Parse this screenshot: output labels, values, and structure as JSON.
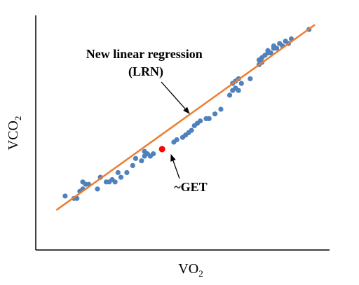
{
  "chart_data": {
    "type": "scatter",
    "title": "",
    "xlabel": {
      "main": "VO",
      "sub": "2"
    },
    "ylabel": {
      "main": "VCO",
      "sub": "2"
    },
    "xlim": [
      0,
      100
    ],
    "ylim": [
      0,
      100
    ],
    "grid": false,
    "tick_labels": false,
    "colors": {
      "points": "#4f81bd",
      "line": "#ed7d31",
      "highlight": "#ff0000",
      "axes": "#000000"
    },
    "series": [
      {
        "type": "scatter",
        "points": [
          [
            10,
            23
          ],
          [
            13,
            22
          ],
          [
            14,
            22
          ],
          [
            15,
            25
          ],
          [
            16,
            26
          ],
          [
            16,
            29
          ],
          [
            17,
            28
          ],
          [
            18,
            28
          ],
          [
            21,
            26
          ],
          [
            22,
            31
          ],
          [
            24,
            29
          ],
          [
            25,
            29
          ],
          [
            26,
            30
          ],
          [
            27,
            29
          ],
          [
            28,
            33
          ],
          [
            29,
            31
          ],
          [
            31,
            33
          ],
          [
            33,
            36
          ],
          [
            34,
            39
          ],
          [
            36,
            38
          ],
          [
            37,
            40
          ],
          [
            37,
            42
          ],
          [
            38,
            41
          ],
          [
            39,
            40
          ],
          [
            40,
            41
          ],
          [
            47,
            46
          ],
          [
            48,
            47
          ],
          [
            50,
            48
          ],
          [
            51,
            49
          ],
          [
            52,
            50
          ],
          [
            53,
            51
          ],
          [
            54,
            53
          ],
          [
            55,
            54
          ],
          [
            56,
            55
          ],
          [
            58,
            56
          ],
          [
            59,
            56
          ],
          [
            61,
            58
          ],
          [
            63,
            60
          ],
          [
            66,
            66
          ],
          [
            67,
            68
          ],
          [
            67,
            71
          ],
          [
            68,
            72
          ],
          [
            68,
            69
          ],
          [
            69,
            68
          ],
          [
            69,
            73
          ],
          [
            70,
            71
          ],
          [
            73,
            73
          ],
          [
            76,
            79
          ],
          [
            76,
            81
          ],
          [
            77,
            82
          ],
          [
            77,
            80
          ],
          [
            78,
            83
          ],
          [
            79,
            84
          ],
          [
            79,
            85
          ],
          [
            80,
            84
          ],
          [
            81,
            87
          ],
          [
            81,
            86
          ],
          [
            82,
            86
          ],
          [
            83,
            88
          ],
          [
            84,
            87
          ],
          [
            85,
            89
          ],
          [
            86,
            88
          ],
          [
            87,
            90
          ],
          [
            93,
            94
          ]
        ]
      },
      {
        "type": "line",
        "name": "New linear regression (LRN)",
        "points": [
          [
            7,
            17
          ],
          [
            95,
            96
          ]
        ]
      }
    ],
    "highlight": {
      "label": "~GET",
      "x": 43,
      "y": 43
    },
    "annotations": [
      {
        "lines": [
          "New linear regression",
          "(LRN)"
        ],
        "target": "regression-line"
      },
      {
        "lines": [
          "~GET"
        ],
        "target": "highlight-point"
      }
    ]
  }
}
